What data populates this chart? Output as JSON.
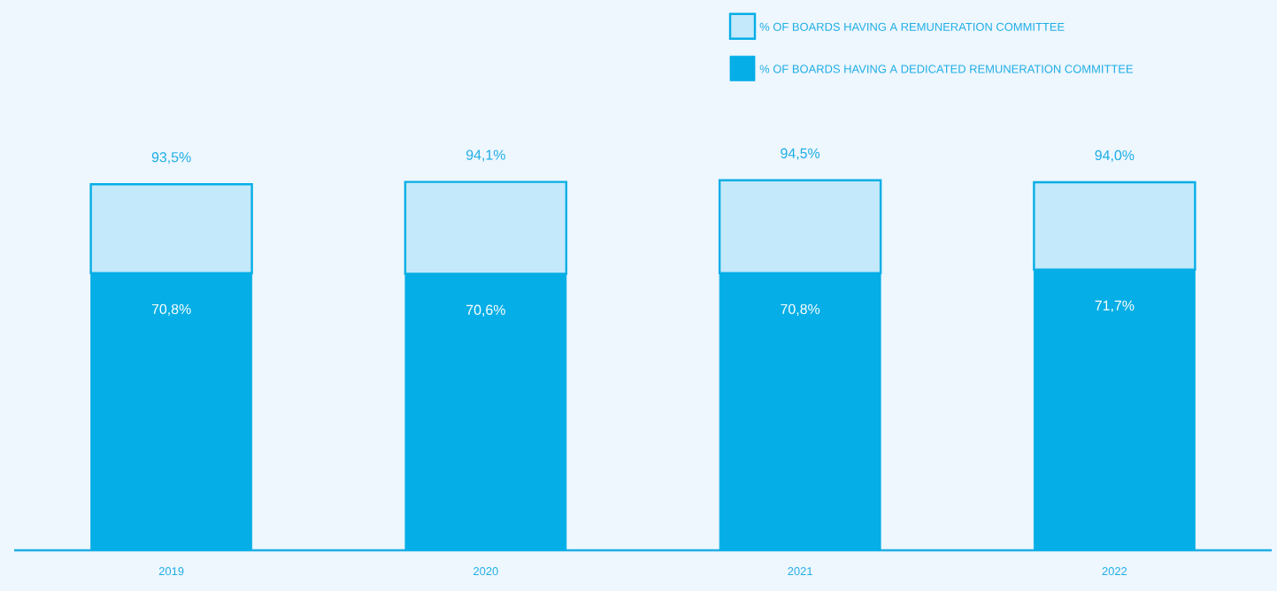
{
  "chart_data": {
    "type": "bar",
    "stacked": true,
    "legend": "top right",
    "categories": [
      "2019",
      "2020",
      "2021",
      "2022"
    ],
    "series": [
      {
        "name": "% OF BOARDS HAVING A DEDICATED REMUNERATION COMMITTEE",
        "color": "#05aee6",
        "values": [
          70.8,
          70.6,
          70.8,
          71.7
        ],
        "value_labels": [
          "70,8%",
          "70,6%",
          "70,8%",
          "71,7%"
        ]
      },
      {
        "name": "% OF BOARDS HAVING A REMUNERATION COMMITTEE",
        "color": "#05aee6",
        "values": [
          22.7,
          23.5,
          23.7,
          22.3
        ]
      }
    ],
    "totals": [
      "93,5%",
      "94,1%",
      "94,5%",
      "94,0%"
    ]
  }
}
